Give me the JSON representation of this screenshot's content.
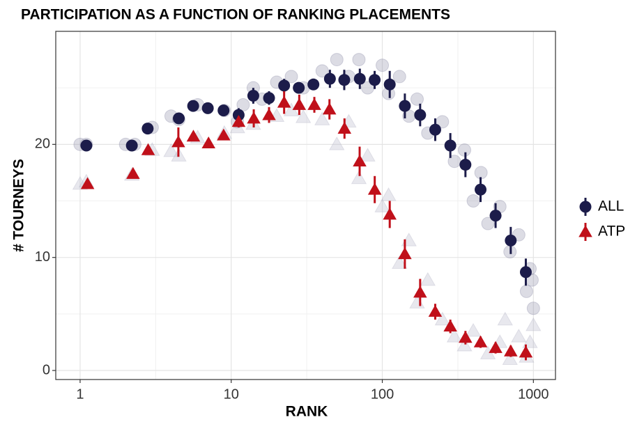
{
  "chart_data": {
    "type": "scatter",
    "title": "PARTICIPATION AS A FUNCTION OF RANKING PLACEMENTS",
    "x_label": "RANK",
    "y_label": "# TOURNEYS",
    "xlim": [
      0.69,
      1400
    ],
    "ylim": [
      -0.8,
      30
    ],
    "log_x": true,
    "grid": true,
    "legend": "right",
    "xticks": [
      1,
      10,
      100,
      1000
    ],
    "yticks": [
      0,
      10,
      20
    ],
    "series": [
      {
        "name": "ALL",
        "color": "#1c1c4a",
        "marker": "circle",
        "x": [
          1.1,
          2.2,
          2.8,
          4.5,
          5.6,
          7,
          8.9,
          11.2,
          14,
          17.8,
          22.4,
          28,
          35,
          45,
          56,
          71,
          89,
          112,
          141,
          178,
          224,
          282,
          355,
          447,
          562,
          708,
          891
        ],
        "values": [
          19.9,
          19.9,
          21.4,
          22.3,
          23.4,
          23.2,
          23,
          22.6,
          24.3,
          24.1,
          25.2,
          25,
          25.3,
          25.8,
          25.7,
          25.8,
          25.7,
          25.3,
          23.4,
          22.6,
          21.3,
          19.9,
          18.2,
          16,
          13.7,
          11.5,
          8.7
        ],
        "errors": [
          0.1,
          0.1,
          0.2,
          0.3,
          0.2,
          0.2,
          0.2,
          0.6,
          0.7,
          0.6,
          0.6,
          0.5,
          0.5,
          0.8,
          0.9,
          0.9,
          0.8,
          1.2,
          1.1,
          1,
          1,
          1.1,
          1.1,
          1.1,
          1.1,
          1.2,
          1.2
        ]
      },
      {
        "name": "ATP",
        "color": "#c0101a",
        "marker": "triangle",
        "x": [
          1.12,
          2.24,
          2.82,
          4.47,
          5.62,
          7.08,
          8.91,
          11.2,
          14.1,
          17.8,
          22.4,
          28.2,
          35.5,
          44.7,
          56.2,
          70.8,
          89.1,
          112,
          141,
          178,
          224,
          282,
          355,
          447,
          562,
          708,
          891
        ],
        "values": [
          16.5,
          17.4,
          19.5,
          20.2,
          20.7,
          20.1,
          20.8,
          22,
          22.3,
          22.6,
          23.7,
          23.5,
          23.5,
          23.1,
          21.4,
          18.5,
          16,
          13.8,
          10.3,
          6.9,
          5.2,
          3.9,
          2.9,
          2.5,
          2,
          1.7,
          1.6
        ],
        "errors": [
          0.1,
          0.1,
          0.2,
          1.3,
          0.2,
          0.2,
          0.3,
          0.5,
          0.8,
          0.7,
          1,
          0.9,
          0.7,
          0.9,
          0.9,
          1.3,
          1.2,
          1.2,
          1.3,
          1.2,
          0.7,
          0.6,
          0.6,
          0.5,
          0.5,
          0.5,
          0.7
        ]
      }
    ],
    "background": [
      {
        "marker": "circle",
        "color": "#8a8aa6",
        "x": [
          1,
          1.1,
          2,
          2.3,
          3,
          4,
          4.5,
          6,
          9,
          11,
          12,
          14,
          16,
          20,
          25,
          30,
          40,
          50,
          60,
          70,
          80,
          100,
          110,
          130,
          150,
          170,
          200,
          250,
          300,
          350,
          400,
          450,
          500,
          600,
          700,
          800,
          900,
          950,
          1000,
          980
        ],
        "values": [
          20,
          20,
          20,
          20,
          21.5,
          22.5,
          22.2,
          23.5,
          23,
          22,
          23.5,
          25,
          24,
          25.5,
          26,
          25,
          26.5,
          27.5,
          26,
          27.5,
          25,
          27,
          24.5,
          26,
          22.5,
          24,
          21,
          22,
          18.5,
          19.5,
          15,
          17.5,
          13,
          14.5,
          10.5,
          12,
          7,
          9,
          5.5,
          8
        ]
      },
      {
        "marker": "triangle",
        "color": "#b4b4c6",
        "x": [
          1,
          1.1,
          2.2,
          3,
          4,
          4.5,
          6,
          9,
          11,
          14,
          20,
          25,
          30,
          40,
          50,
          60,
          70,
          80,
          100,
          110,
          130,
          150,
          170,
          200,
          250,
          300,
          350,
          400,
          500,
          600,
          700,
          800,
          900,
          1000,
          950,
          650
        ],
        "values": [
          16.5,
          16.7,
          17.3,
          19.5,
          19.4,
          19,
          20.6,
          21,
          21.5,
          21.8,
          22.5,
          23,
          22.4,
          22.2,
          20,
          22,
          17,
          19,
          14.5,
          15.5,
          9.5,
          11.5,
          6,
          8,
          4.5,
          3,
          2.2,
          3.5,
          1.5,
          2.5,
          1,
          3,
          1.2,
          4,
          2.5,
          4.5
        ]
      }
    ]
  }
}
